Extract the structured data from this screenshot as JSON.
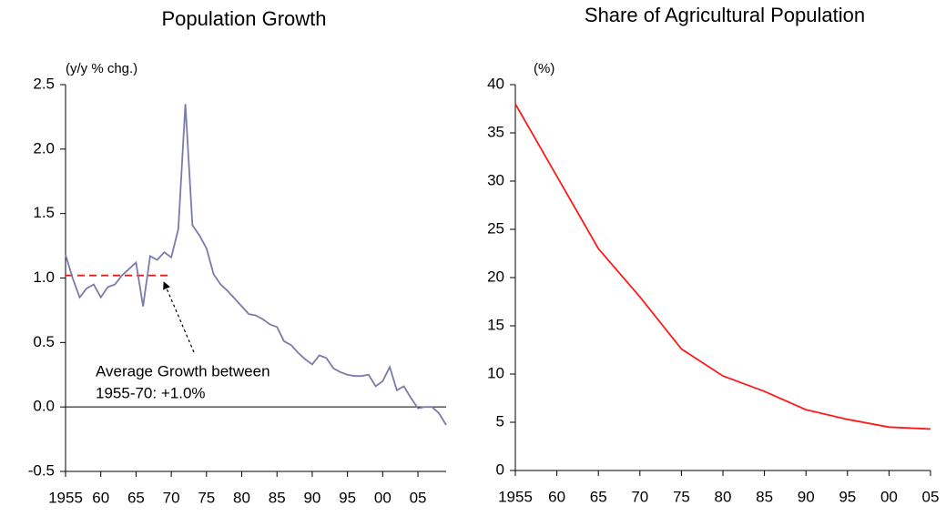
{
  "chart_data": [
    {
      "type": "line",
      "title": "Population Growth",
      "y_label": "(y/y % chg.)",
      "x": [
        1955,
        1956,
        1957,
        1958,
        1959,
        1960,
        1961,
        1962,
        1963,
        1964,
        1965,
        1966,
        1967,
        1968,
        1969,
        1970,
        1971,
        1972,
        1973,
        1974,
        1975,
        1976,
        1977,
        1978,
        1979,
        1980,
        1981,
        1982,
        1983,
        1984,
        1985,
        1986,
        1987,
        1988,
        1989,
        1990,
        1991,
        1992,
        1993,
        1994,
        1995,
        1996,
        1997,
        1998,
        1999,
        2000,
        2001,
        2002,
        2003,
        2004,
        2005,
        2006,
        2007,
        2008,
        2009
      ],
      "series": [
        {
          "name": "Population Growth",
          "color": "#7b7bab",
          "values": [
            1.18,
            1.0,
            0.85,
            0.92,
            0.95,
            0.85,
            0.93,
            0.95,
            1.02,
            1.07,
            1.12,
            0.78,
            1.17,
            1.14,
            1.2,
            1.16,
            1.38,
            2.35,
            1.41,
            1.33,
            1.23,
            1.03,
            0.95,
            0.9,
            0.84,
            0.78,
            0.72,
            0.71,
            0.68,
            0.64,
            0.62,
            0.51,
            0.48,
            0.42,
            0.37,
            0.33,
            0.4,
            0.38,
            0.3,
            0.27,
            0.25,
            0.24,
            0.24,
            0.25,
            0.16,
            0.2,
            0.31,
            0.13,
            0.16,
            0.07,
            -0.01,
            0.0,
            0.0,
            -0.05,
            -0.14
          ]
        }
      ],
      "average_line": {
        "value": 1.02,
        "x": [
          1955,
          1970
        ],
        "color": "#e02020"
      },
      "annotation": [
        "Average Growth between",
        "1955-70: +1.0%"
      ],
      "xlim": [
        1955,
        2009
      ],
      "xticks": [
        1955,
        {
          "value": 1960,
          "label": "60"
        },
        {
          "value": 1965,
          "label": "65"
        },
        {
          "value": 1970,
          "label": "70"
        },
        {
          "value": 1975,
          "label": "75"
        },
        {
          "value": 1980,
          "label": "80"
        },
        {
          "value": 1985,
          "label": "85"
        },
        {
          "value": 1990,
          "label": "90"
        },
        {
          "value": 1995,
          "label": "95"
        },
        {
          "value": 2000,
          "label": "00"
        },
        {
          "value": 2005,
          "label": "05"
        }
      ],
      "ylim": [
        -0.5,
        2.5
      ],
      "yticks": [
        -0.5,
        {
          "value": 0,
          "label": "0.0"
        },
        0.5,
        {
          "value": 1,
          "label": "1.0"
        },
        1.5,
        {
          "value": 2,
          "label": "2.0"
        },
        2.5
      ]
    },
    {
      "type": "line",
      "title": "Share of Agricultural Population",
      "y_label": "(%)",
      "x": [
        1955,
        1960,
        1965,
        1970,
        1975,
        1980,
        1985,
        1990,
        1995,
        2000,
        2005
      ],
      "series": [
        {
          "name": "Share of Agricultural Population",
          "color": "#ff1a1a",
          "values": [
            38,
            30.5,
            23,
            18,
            12.6,
            9.8,
            8.2,
            6.3,
            5.3,
            4.5,
            4.3
          ]
        }
      ],
      "xlim": [
        1955,
        2005
      ],
      "xticks": [
        1955,
        {
          "value": 1960,
          "label": "60"
        },
        {
          "value": 1965,
          "label": "65"
        },
        {
          "value": 1970,
          "label": "70"
        },
        {
          "value": 1975,
          "label": "75"
        },
        {
          "value": 1980,
          "label": "80"
        },
        {
          "value": 1985,
          "label": "85"
        },
        {
          "value": 1990,
          "label": "90"
        },
        {
          "value": 1995,
          "label": "95"
        },
        {
          "value": 2000,
          "label": "00"
        },
        {
          "value": 2005,
          "label": "05"
        }
      ],
      "ylim": [
        0,
        40
      ],
      "yticks": [
        0,
        5,
        10,
        15,
        20,
        25,
        30,
        35,
        40
      ]
    }
  ]
}
